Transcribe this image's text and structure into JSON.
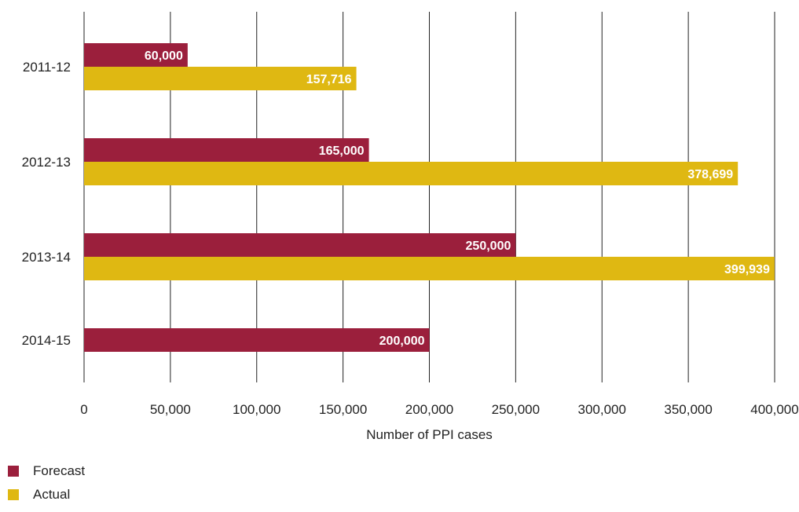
{
  "chart_data": {
    "type": "bar",
    "orientation": "horizontal",
    "categories": [
      "2011-12",
      "2012-13",
      "2013-14",
      "2014-15"
    ],
    "series": [
      {
        "name": "Forecast",
        "color": "#9b1f3c",
        "values": [
          60000,
          165000,
          250000,
          200000
        ],
        "labels": [
          "60,000",
          "165,000",
          "250,000",
          "200,000"
        ]
      },
      {
        "name": "Actual",
        "color": "#dfb812",
        "values": [
          157716,
          378699,
          399939,
          null
        ],
        "labels": [
          "157,716",
          "378,699",
          "399,939",
          ""
        ]
      }
    ],
    "xlabel": "Number of PPI cases",
    "ylabel": "",
    "xlim": [
      0,
      400000
    ],
    "xticks": [
      0,
      50000,
      100000,
      150000,
      200000,
      250000,
      300000,
      350000,
      400000
    ],
    "xtick_labels": [
      "0",
      "50,000",
      "100,000",
      "150,000",
      "200,000",
      "250,000",
      "300,000",
      "350,000",
      "400,000"
    ],
    "grid": "vertical",
    "legend_position": "bottom-left"
  }
}
